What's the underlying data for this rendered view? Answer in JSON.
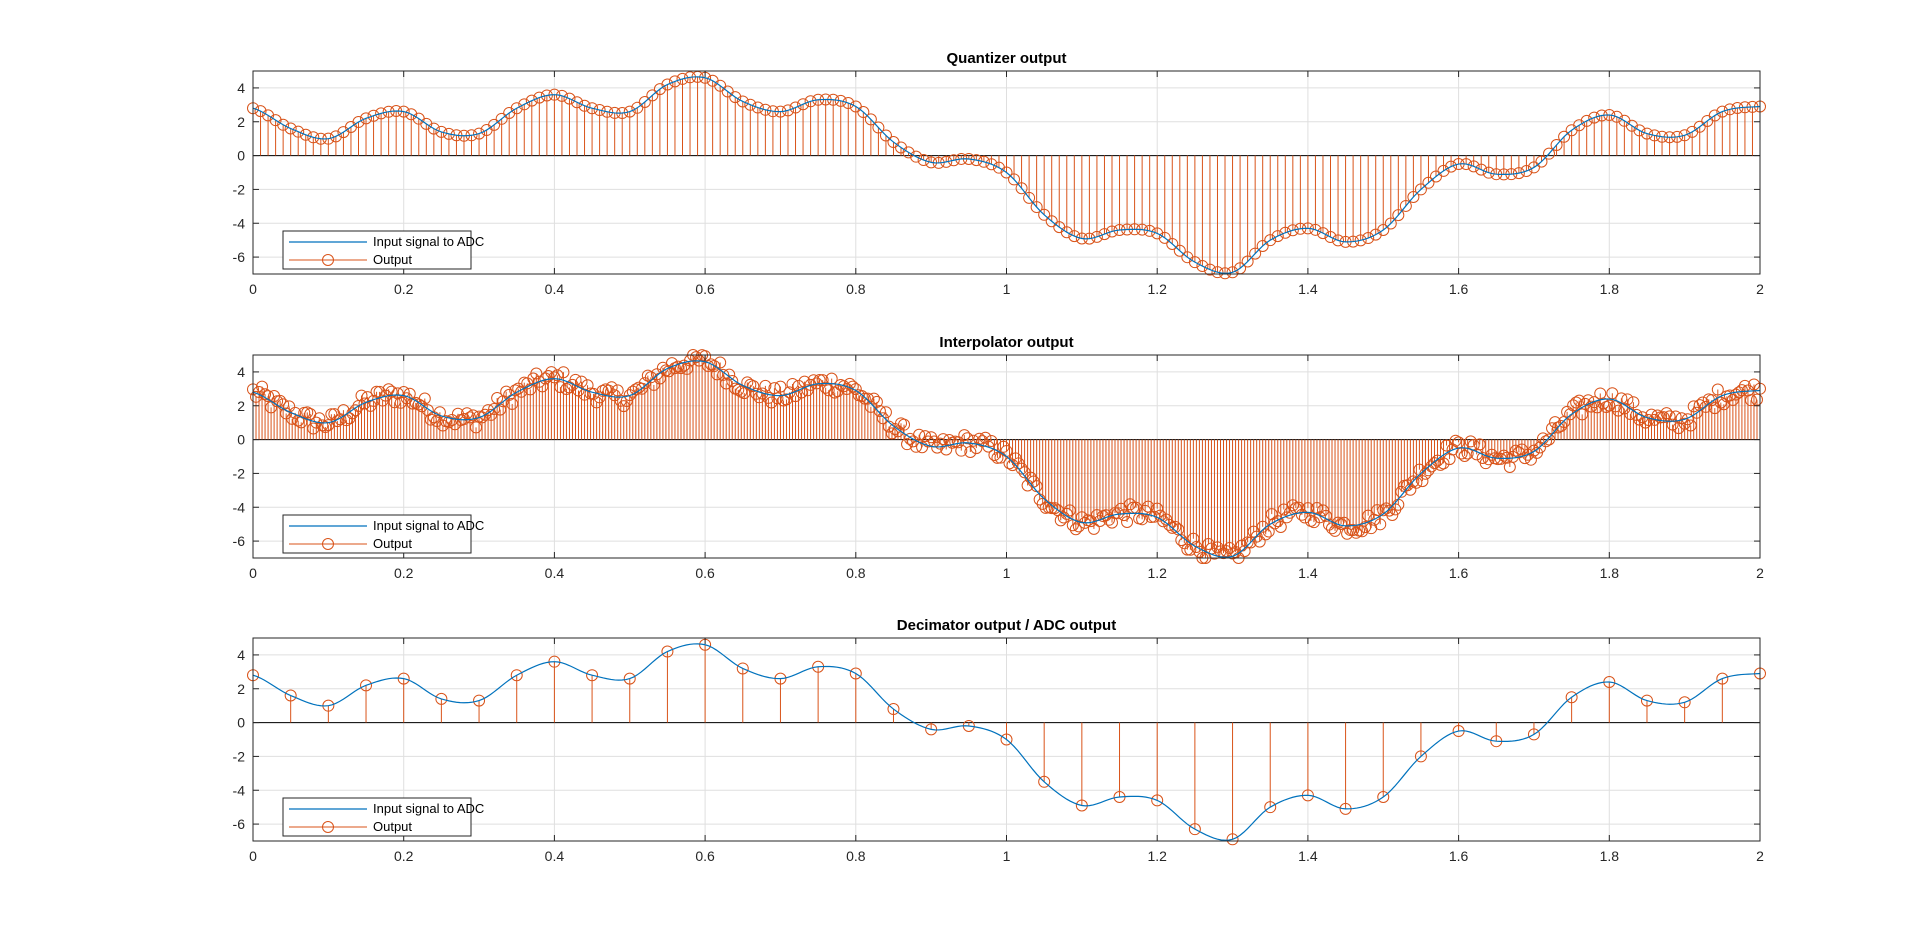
{
  "colors": {
    "input": "#0072BD",
    "output": "#D95319",
    "grid": "#DFDFDF",
    "axis": "#262626"
  },
  "chart_data": [
    {
      "type": "line",
      "title": "Quantizer output",
      "xlim": [
        0,
        2
      ],
      "ylim": [
        -7,
        5
      ],
      "xticks": [
        "0",
        "0.2",
        "0.4",
        "0.6",
        "0.8",
        "1",
        "1.2",
        "1.4",
        "1.6",
        "1.8",
        "2"
      ],
      "yticks": [
        "4",
        "2",
        "0",
        "-2",
        "-4",
        "-6"
      ],
      "grid": true,
      "legend_position": "bottom-left",
      "series": [
        {
          "name": "Input signal to ADC",
          "style": "line",
          "step": 0.005
        },
        {
          "name": "Output",
          "style": "stem",
          "step": 0.01
        }
      ]
    },
    {
      "type": "line",
      "title": "Interpolator output",
      "xlim": [
        0,
        2
      ],
      "ylim": [
        -7,
        5
      ],
      "xticks": [
        "0",
        "0.2",
        "0.4",
        "0.6",
        "0.8",
        "1",
        "1.2",
        "1.4",
        "1.6",
        "1.8",
        "2"
      ],
      "yticks": [
        "4",
        "2",
        "0",
        "-2",
        "-4",
        "-6"
      ],
      "grid": true,
      "legend_position": "bottom-left",
      "series": [
        {
          "name": "Input signal to ADC",
          "style": "line",
          "step": 0.005
        },
        {
          "name": "Output",
          "style": "stem",
          "step": 0.004
        }
      ]
    },
    {
      "type": "line",
      "title": "Decimator output / ADC output",
      "xlim": [
        0,
        2
      ],
      "ylim": [
        -7,
        5
      ],
      "xticks": [
        "0",
        "0.2",
        "0.4",
        "0.6",
        "0.8",
        "1",
        "1.2",
        "1.4",
        "1.6",
        "1.8",
        "2"
      ],
      "yticks": [
        "4",
        "2",
        "0",
        "-2",
        "-4",
        "-6"
      ],
      "grid": true,
      "legend_position": "bottom-left",
      "series": [
        {
          "name": "Input signal to ADC",
          "style": "line",
          "step": 0.005
        },
        {
          "name": "Output",
          "style": "stem",
          "step": 0.05
        }
      ]
    }
  ],
  "signal_points": {
    "x": [
      0,
      0.05,
      0.1,
      0.15,
      0.2,
      0.25,
      0.3,
      0.35,
      0.4,
      0.45,
      0.5,
      0.55,
      0.6,
      0.65,
      0.7,
      0.75,
      0.8,
      0.85,
      0.9,
      0.95,
      1.0,
      1.05,
      1.1,
      1.15,
      1.2,
      1.25,
      1.3,
      1.35,
      1.4,
      1.45,
      1.5,
      1.55,
      1.6,
      1.65,
      1.7,
      1.75,
      1.8,
      1.85,
      1.9,
      1.95,
      2.0
    ],
    "y": [
      2.8,
      1.6,
      1.0,
      2.2,
      2.6,
      1.4,
      1.3,
      2.8,
      3.6,
      2.8,
      2.6,
      4.2,
      4.6,
      3.2,
      2.6,
      3.3,
      2.9,
      0.8,
      -0.4,
      -0.2,
      -1.0,
      -3.5,
      -4.9,
      -4.4,
      -4.6,
      -6.3,
      -6.9,
      -5.0,
      -4.3,
      -5.1,
      -4.4,
      -2.0,
      -0.5,
      -1.1,
      -0.7,
      1.5,
      2.4,
      1.3,
      1.2,
      2.6,
      2.9
    ]
  }
}
